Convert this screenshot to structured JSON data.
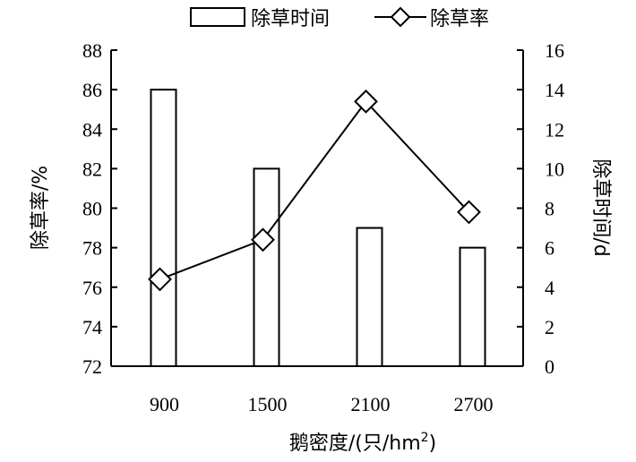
{
  "chart_data": {
    "type": "bar+line",
    "categories": [
      "900",
      "1500",
      "2100",
      "2700"
    ],
    "xlabel": "鹅密度/(只/hm",
    "xlabel_sup": "2",
    "xlabel_tail": ")",
    "y_left": {
      "label": "除草率/%",
      "min": 72,
      "max": 88,
      "ticks": [
        72,
        74,
        76,
        78,
        80,
        82,
        84,
        86,
        88
      ]
    },
    "y_right": {
      "label": "除草时间/d",
      "min": 0,
      "max": 16,
      "ticks": [
        0,
        2,
        4,
        6,
        8,
        10,
        12,
        14,
        16
      ]
    },
    "series": [
      {
        "name": "除草时间",
        "kind": "bar",
        "axis": "right",
        "values": [
          14,
          10,
          7,
          6
        ]
      },
      {
        "name": "除草率",
        "kind": "line",
        "marker": "diamond",
        "axis": "left",
        "values": [
          76.4,
          78.4,
          85.4,
          79.8
        ]
      }
    ],
    "legend_position": "top-center",
    "colors": {
      "bar_fill": "#ffffff",
      "stroke": "#000000"
    }
  }
}
